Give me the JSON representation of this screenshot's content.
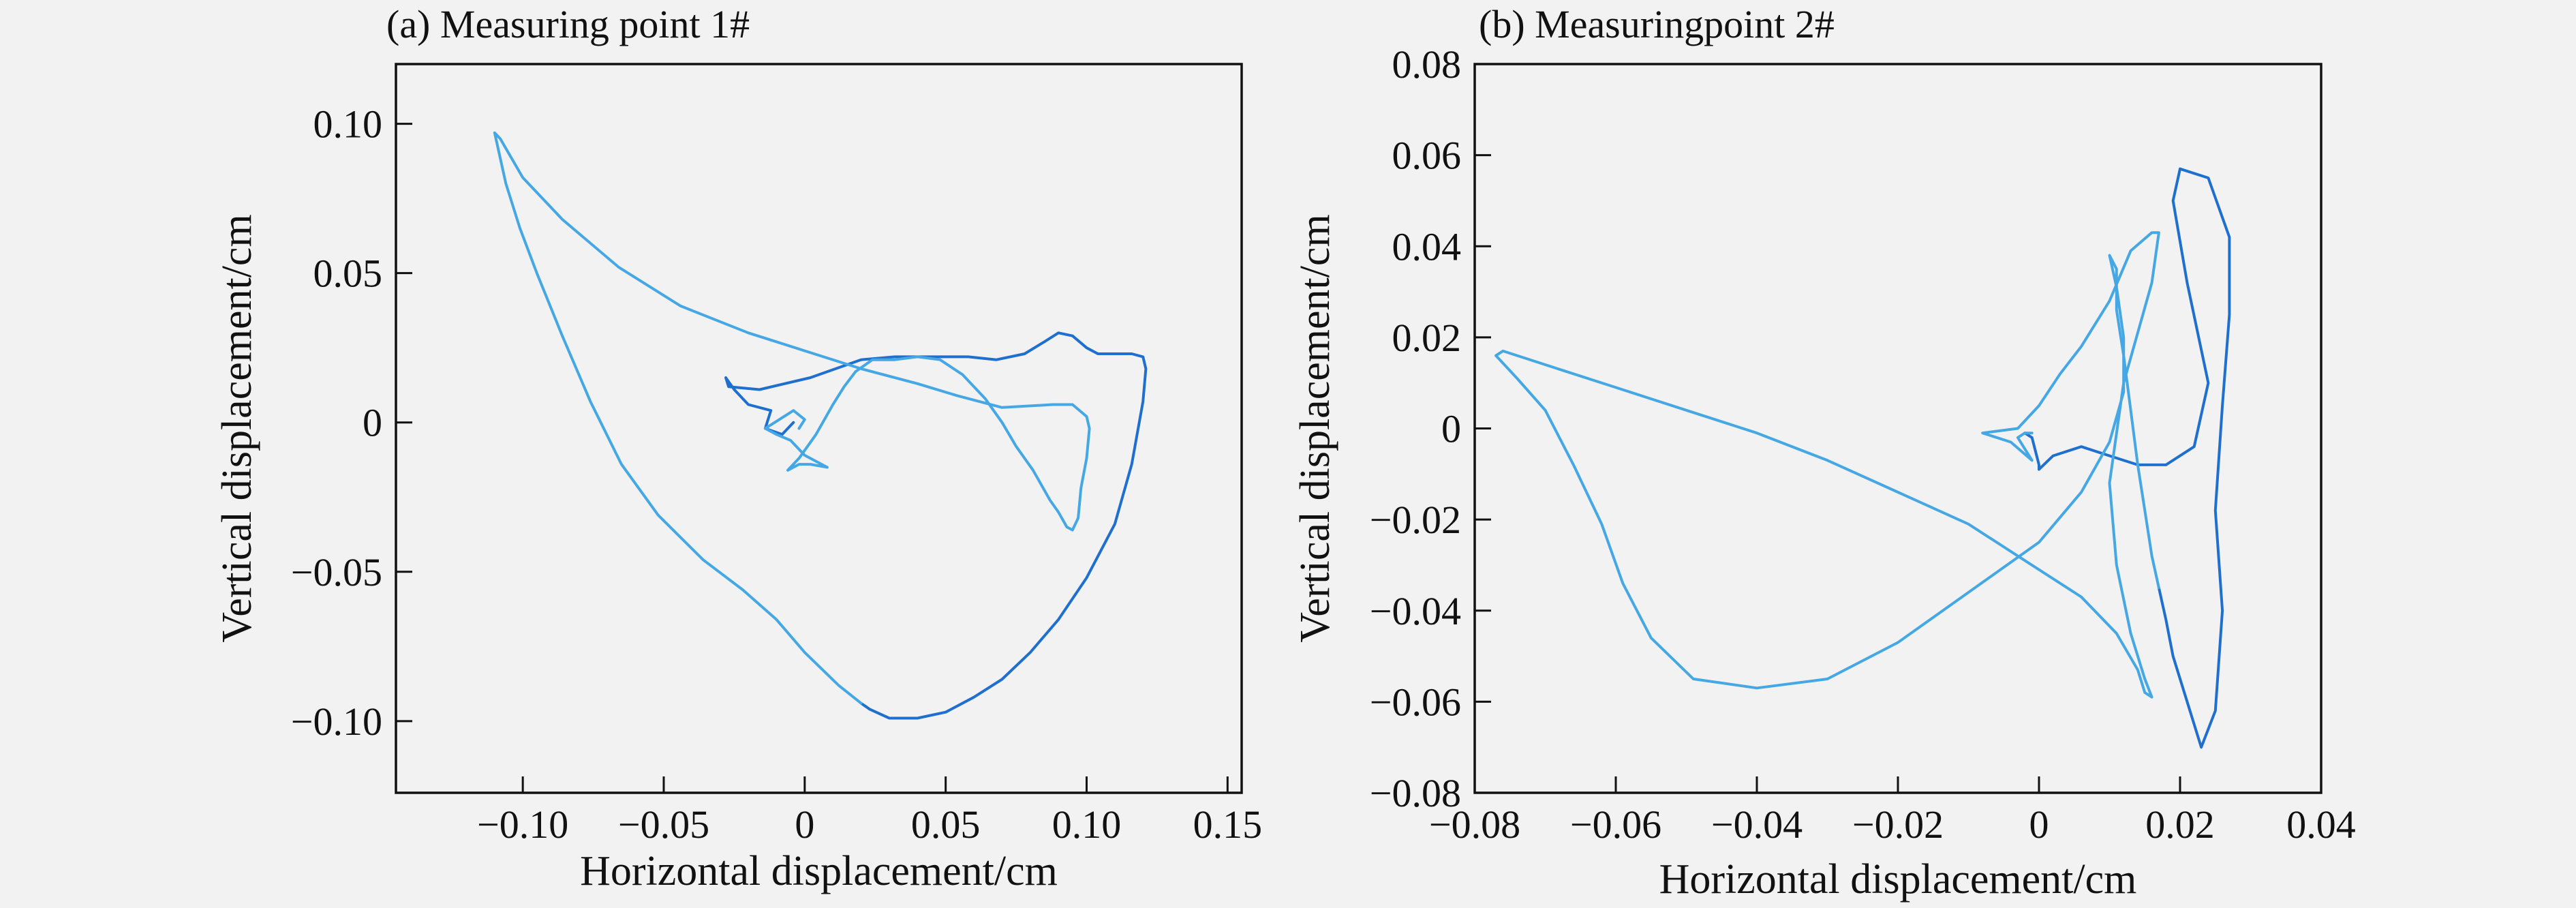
{
  "chart_data": [
    {
      "type": "line",
      "title": "(a) Measuring point 1#",
      "xlabel": "Horizontal displacement/cm",
      "ylabel": "Vertical displacement/cm",
      "xlim": [
        -0.145,
        0.155
      ],
      "ylim": [
        -0.124,
        0.12
      ],
      "xticks": [
        -0.1,
        -0.05,
        0,
        0.05,
        0.1,
        0.15
      ],
      "xtick_labels": [
        "−0.10",
        "−0.05",
        "0",
        "0.05",
        "0.10",
        "0.15"
      ],
      "yticks": [
        0.1,
        0.05,
        0,
        -0.05,
        -0.1
      ],
      "ytick_labels": [
        "0.10",
        "0.05",
        "0",
        "−0.05",
        "−0.10"
      ],
      "grid": false,
      "colors": [
        "#1f6fcf",
        "#45a8e4"
      ],
      "series": [
        {
          "x": [
            -0.004,
            -0.008,
            -0.014,
            -0.012,
            -0.02,
            -0.025,
            -0.028,
            -0.027,
            -0.016,
            0.002,
            0.02,
            0.032,
            0.045,
            0.058,
            0.068,
            0.078,
            0.085,
            0.09,
            0.095,
            0.1,
            0.104,
            0.11,
            0.116,
            0.12,
            0.121,
            0.12,
            0.116,
            0.11,
            0.1,
            0.09,
            0.08,
            0.07,
            0.06,
            0.05,
            0.04,
            0.03,
            0.023,
            0.02
          ],
          "y": [
            0.0,
            -0.004,
            -0.002,
            0.004,
            0.006,
            0.011,
            0.015,
            0.012,
            0.011,
            0.015,
            0.021,
            0.022,
            0.022,
            0.022,
            0.021,
            0.023,
            0.027,
            0.03,
            0.029,
            0.025,
            0.023,
            0.023,
            0.023,
            0.022,
            0.018,
            0.007,
            -0.014,
            -0.034,
            -0.052,
            -0.066,
            -0.077,
            -0.086,
            -0.092,
            -0.097,
            -0.099,
            -0.099,
            -0.096,
            -0.094
          ]
        },
        {
          "x": [
            0.02,
            0.012,
            0.0,
            -0.01,
            -0.022,
            -0.036,
            -0.052,
            -0.065,
            -0.076,
            -0.086,
            -0.095,
            -0.101,
            -0.106,
            -0.11,
            -0.108,
            -0.1,
            -0.086,
            -0.066,
            -0.044,
            -0.02,
            0.0,
            0.02,
            0.04,
            0.054,
            0.07,
            0.088,
            0.095,
            0.1,
            0.101,
            0.1,
            0.098,
            0.097,
            0.095,
            0.093,
            0.09,
            0.087,
            0.081,
            0.075,
            0.07,
            0.064,
            0.056,
            0.048,
            0.04,
            0.032,
            0.024,
            0.018,
            0.014,
            0.01,
            0.004,
            -0.002,
            -0.006,
            -0.002,
            0.002,
            0.008,
            0.0,
            -0.005,
            -0.01,
            -0.014,
            -0.009,
            -0.004,
            0.0,
            -0.002
          ],
          "y": [
            -0.094,
            -0.088,
            -0.077,
            -0.066,
            -0.056,
            -0.046,
            -0.031,
            -0.014,
            0.007,
            0.029,
            0.05,
            0.065,
            0.08,
            0.097,
            0.095,
            0.082,
            0.068,
            0.052,
            0.039,
            0.03,
            0.024,
            0.018,
            0.013,
            0.009,
            0.005,
            0.006,
            0.006,
            0.002,
            -0.002,
            -0.012,
            -0.022,
            -0.032,
            -0.036,
            -0.035,
            -0.03,
            -0.026,
            -0.016,
            -0.008,
            0.0,
            0.008,
            0.016,
            0.021,
            0.022,
            0.021,
            0.021,
            0.017,
            0.012,
            0.006,
            -0.004,
            -0.012,
            -0.016,
            -0.014,
            -0.014,
            -0.015,
            -0.011,
            -0.006,
            -0.004,
            -0.002,
            0.001,
            0.004,
            0.001,
            -0.002
          ]
        }
      ]
    },
    {
      "type": "line",
      "title": "(b) Measuringpoint 2#",
      "xlabel": "Horizontal displacement/cm",
      "ylabel": "Vertical displacement/cm",
      "xlim": [
        -0.08,
        0.04
      ],
      "ylim": [
        -0.08,
        0.08
      ],
      "xticks": [
        -0.08,
        -0.06,
        -0.04,
        -0.02,
        0,
        0.02,
        0.04
      ],
      "xtick_labels": [
        "−0.08",
        "−0.06",
        "−0.04",
        "−0.02",
        "0",
        "0.02",
        "0.04"
      ],
      "yticks": [
        0.08,
        0.06,
        0.04,
        0.02,
        0,
        -0.02,
        -0.04,
        -0.06,
        -0.08
      ],
      "ytick_labels": [
        "0.08",
        "0.06",
        "0.04",
        "0.02",
        "0",
        "−0.02",
        "−0.04",
        "−0.06",
        "−0.08"
      ],
      "grid": false,
      "colors": [
        "#1f6fcf",
        "#45a8e4"
      ],
      "series": [
        {
          "x": [
            -0.002,
            -0.001,
            0.0,
            0.0,
            0.002,
            0.006,
            0.01,
            0.014,
            0.018,
            0.022,
            0.024,
            0.021,
            0.019,
            0.02,
            0.024,
            0.027,
            0.027,
            0.026,
            0.025,
            0.026,
            0.025,
            0.023,
            0.021,
            0.019,
            0.018,
            0.017
          ],
          "y": [
            -0.001,
            -0.002,
            -0.008,
            -0.009,
            -0.006,
            -0.004,
            -0.006,
            -0.008,
            -0.008,
            -0.004,
            0.01,
            0.032,
            0.05,
            0.057,
            0.055,
            0.042,
            0.025,
            0.005,
            -0.018,
            -0.04,
            -0.062,
            -0.07,
            -0.06,
            -0.05,
            -0.042,
            -0.035
          ]
        },
        {
          "x": [
            0.017,
            0.016,
            0.015,
            0.014,
            0.013,
            0.012,
            0.011,
            0.011,
            0.01,
            0.011,
            0.012,
            0.012,
            0.01,
            0.006,
            0.0,
            -0.01,
            -0.02,
            -0.03,
            -0.04,
            -0.049,
            -0.055,
            -0.059,
            -0.062,
            -0.066,
            -0.07,
            -0.074,
            -0.077,
            -0.076,
            -0.07,
            -0.06,
            -0.05,
            -0.04,
            -0.03,
            -0.02,
            -0.01,
            -0.002,
            0.006,
            0.011,
            0.014,
            0.015,
            0.016,
            0.015,
            0.013,
            0.011,
            0.01,
            0.012,
            0.016,
            0.017,
            0.016,
            0.013,
            0.01,
            0.006,
            0.003,
            0.0,
            -0.003,
            -0.008,
            -0.004,
            -0.001,
            -0.003,
            -0.002,
            -0.001
          ],
          "y": [
            -0.035,
            -0.028,
            -0.018,
            -0.008,
            0.004,
            0.016,
            0.026,
            0.035,
            0.038,
            0.031,
            0.02,
            0.008,
            -0.003,
            -0.014,
            -0.025,
            -0.036,
            -0.047,
            -0.055,
            -0.057,
            -0.055,
            -0.046,
            -0.034,
            -0.021,
            -0.008,
            0.004,
            0.011,
            0.016,
            0.017,
            0.014,
            0.009,
            0.004,
            -0.001,
            -0.007,
            -0.014,
            -0.021,
            -0.029,
            -0.037,
            -0.045,
            -0.053,
            -0.058,
            -0.059,
            -0.055,
            -0.045,
            -0.03,
            -0.012,
            0.01,
            0.032,
            0.043,
            0.043,
            0.039,
            0.028,
            0.018,
            0.012,
            0.005,
            0.0,
            -0.001,
            -0.003,
            -0.007,
            -0.002,
            -0.001,
            -0.001
          ]
        }
      ]
    }
  ]
}
